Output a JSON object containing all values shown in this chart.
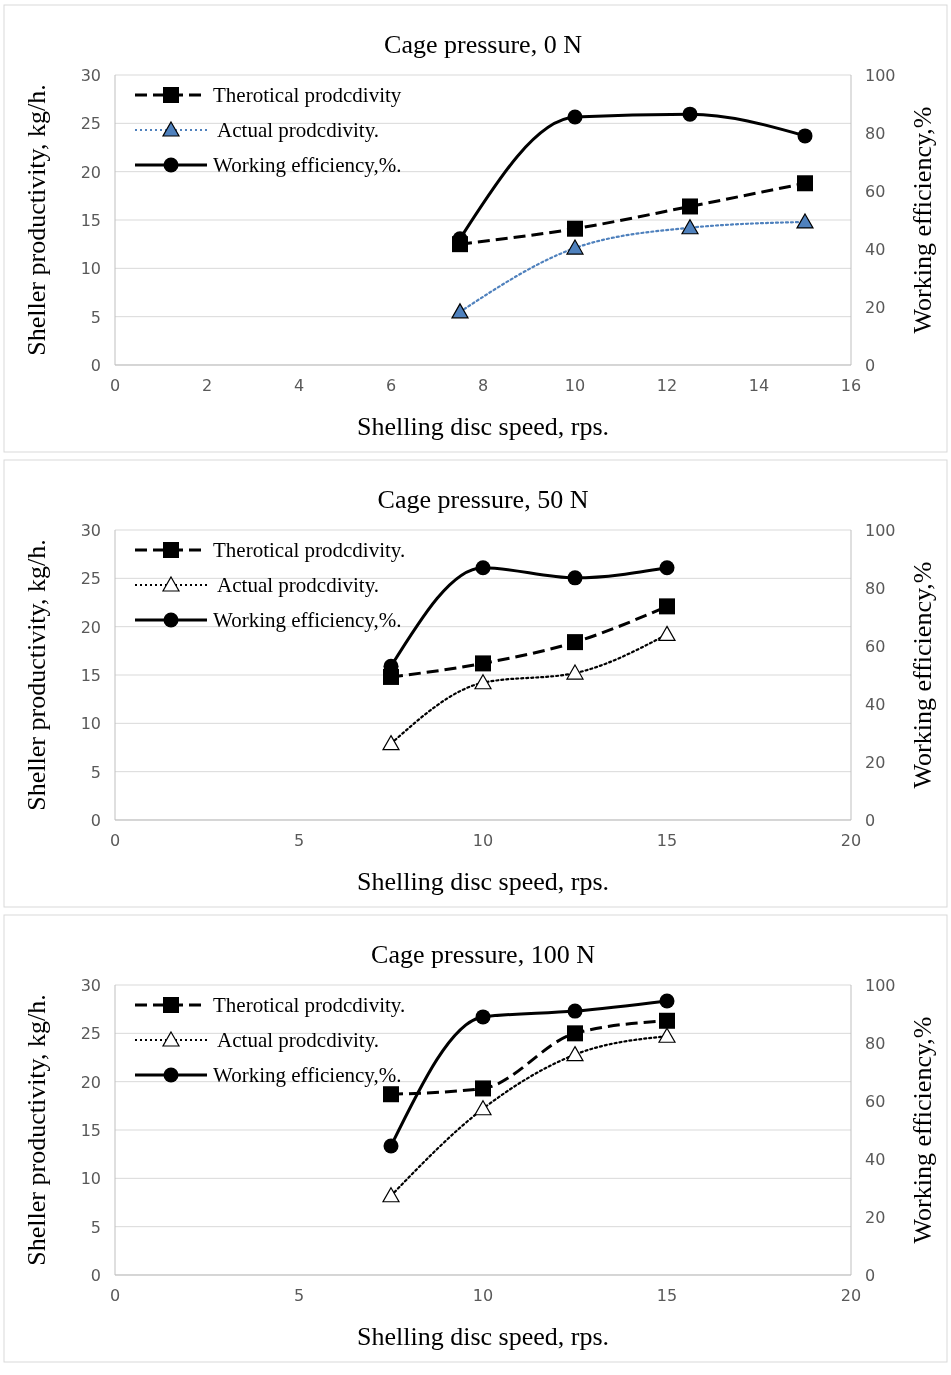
{
  "chart_data": [
    {
      "type": "line",
      "title": "Cage pressure, 0 N",
      "xlabel": "Shelling disc speed, rps.",
      "ylabel": "Sheller productivity, kg/h.",
      "y2label": "Working efficiency,%",
      "xlim": [
        0,
        16
      ],
      "xticks": [
        0,
        2,
        4,
        6,
        8,
        10,
        12,
        14,
        16
      ],
      "ylim": [
        0,
        30
      ],
      "yticks": [
        0,
        5,
        10,
        15,
        20,
        25,
        30
      ],
      "y2lim": [
        0,
        100
      ],
      "y2ticks": [
        0,
        20,
        40,
        60,
        80,
        100
      ],
      "grid": "y",
      "legend": "top left",
      "x": [
        7.5,
        10,
        12.5,
        15
      ],
      "series": [
        {
          "name": "Therotical prodcdivity",
          "color": "#000000",
          "values": [
            12.5,
            14.1,
            16.4,
            18.8
          ],
          "marker": "square",
          "line_style": "dashed"
        },
        {
          "name": " Actual prodcdivity.",
          "color": "#4f81bd",
          "values": [
            5.5,
            12.1,
            14.2,
            14.8
          ],
          "marker": "triangle",
          "line_style": "dotted"
        },
        {
          "name": "Working efficiency,%.",
          "color": "#000000",
          "values": [
            43.5,
            85.5,
            86.5,
            79
          ],
          "marker": "circle",
          "line_style": "solid",
          "axis": "y2"
        }
      ]
    },
    {
      "type": "line",
      "title": "Cage pressure, 50 N",
      "xlabel": "Shelling disc speed, rps.",
      "ylabel": "Sheller productivity, kg/h.",
      "y2label": "Working efficiency,%",
      "xlim": [
        0,
        20
      ],
      "xticks": [
        0,
        5,
        10,
        15,
        20
      ],
      "ylim": [
        0,
        30
      ],
      "yticks": [
        0,
        5,
        10,
        15,
        20,
        25,
        30
      ],
      "y2lim": [
        0,
        100
      ],
      "y2ticks": [
        0,
        20,
        40,
        60,
        80,
        100
      ],
      "grid": "y",
      "legend": "top left",
      "x": [
        7.5,
        10,
        12.5,
        15
      ],
      "series": [
        {
          "name": "Therotical prodcdivity.",
          "color": "#000000",
          "values": [
            14.8,
            16.2,
            18.4,
            22.1
          ],
          "marker": "square",
          "line_style": "dashed"
        },
        {
          "name": " Actual prodcdivity.",
          "color": "#000000",
          "values": [
            7.9,
            14.2,
            15.2,
            19.2
          ],
          "marker": "triangle",
          "line_style": "dotted"
        },
        {
          "name": "Working efficiency,%.",
          "color": "#000000",
          "values": [
            53,
            87,
            83.5,
            87
          ],
          "marker": "circle",
          "line_style": "solid",
          "axis": "y2"
        }
      ]
    },
    {
      "type": "line",
      "title": "Cage pressure, 100 N",
      "xlabel": "Shelling disc speed, rps.",
      "ylabel": "Sheller productivity, kg/h.",
      "y2label": "Working efficiency,%",
      "xlim": [
        0,
        20
      ],
      "xticks": [
        0,
        5,
        10,
        15,
        20
      ],
      "ylim": [
        0,
        30
      ],
      "yticks": [
        0,
        5,
        10,
        15,
        20,
        25,
        30
      ],
      "y2lim": [
        0,
        100
      ],
      "y2ticks": [
        0,
        20,
        40,
        60,
        80,
        100
      ],
      "grid": "y",
      "legend": "top left",
      "x": [
        7.5,
        10,
        12.5,
        15
      ],
      "series": [
        {
          "name": "Therotical prodcdivity.",
          "color": "#000000",
          "values": [
            18.7,
            19.3,
            25.0,
            26.3
          ],
          "marker": "square",
          "line_style": "dashed"
        },
        {
          "name": " Actual prodcdivity.",
          "color": "#000000",
          "values": [
            8.2,
            17.2,
            22.8,
            24.7
          ],
          "marker": "triangle",
          "line_style": "dotted"
        },
        {
          "name": "Working efficiency,%.",
          "color": "#000000",
          "values": [
            44.5,
            89,
            91,
            94.5
          ],
          "marker": "circle",
          "line_style": "solid",
          "axis": "y2"
        }
      ]
    }
  ]
}
